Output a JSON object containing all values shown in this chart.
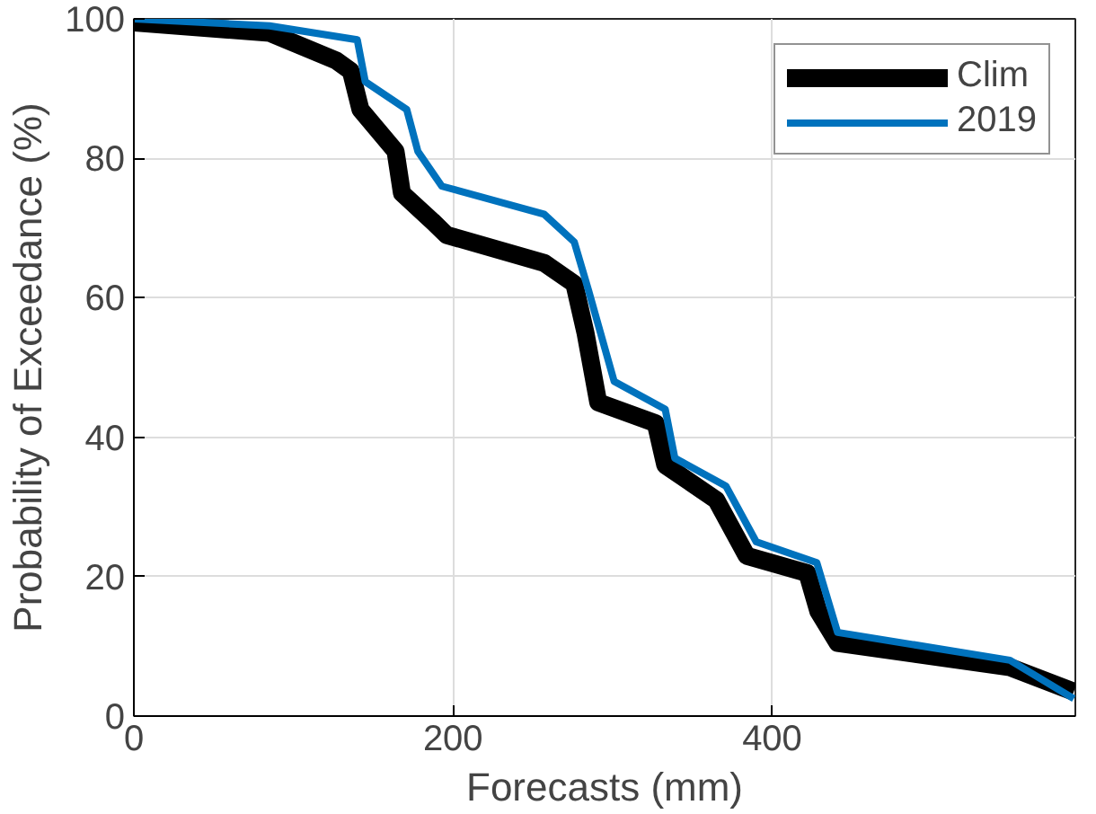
{
  "chart_data": {
    "type": "line",
    "xlabel": "Forecasts (mm)",
    "ylabel": "Probability of Exceedance (%)",
    "xlim": [
      0,
      590
    ],
    "ylim": [
      0,
      100
    ],
    "xticks": [
      0,
      200,
      400
    ],
    "yticks": [
      0,
      20,
      40,
      60,
      80,
      100
    ],
    "grid": true,
    "legend": "top right",
    "marker": "none",
    "line_style": "solid",
    "series": [
      {
        "name": "Clim",
        "color": "#000000",
        "x": [
          0,
          85,
          127,
          136,
          142,
          164,
          168,
          187,
          196,
          257,
          276,
          283,
          291,
          327,
          333,
          365,
          384,
          422,
          429,
          441,
          549,
          589
        ],
        "values": [
          99.5,
          98,
          94,
          92.5,
          87,
          81,
          75,
          71,
          69,
          65,
          62,
          55,
          45,
          42,
          36,
          31,
          23,
          20.5,
          15,
          10.5,
          7,
          3.5
        ]
      },
      {
        "name": "2019",
        "color": "#0072bd",
        "x": [
          0,
          85,
          140,
          145,
          171,
          178,
          193,
          257,
          276,
          285,
          301,
          333,
          339,
          371,
          390,
          428,
          441,
          549,
          589
        ],
        "values": [
          100,
          99,
          97,
          91,
          87,
          81,
          76,
          72,
          68,
          61,
          48,
          44,
          37,
          33,
          25,
          22,
          12,
          8,
          2.5
        ]
      }
    ]
  }
}
